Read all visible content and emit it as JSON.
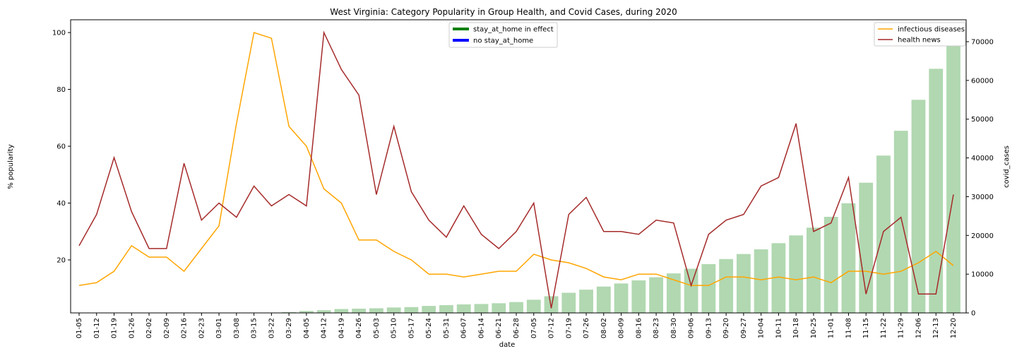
{
  "chart_data": {
    "type": "line",
    "title": "West Virginia: Category Popularity in Group Health, and Covid Cases, during 2020",
    "xlabel": "date",
    "ylabel": "% popularity",
    "y2label": "covid_cases",
    "categories": [
      "01-05",
      "01-12",
      "01-19",
      "01-26",
      "02-02",
      "02-09",
      "02-16",
      "02-23",
      "03-01",
      "03-08",
      "03-15",
      "03-22",
      "03-29",
      "04-05",
      "04-12",
      "04-19",
      "04-26",
      "05-03",
      "05-10",
      "05-17",
      "05-24",
      "05-31",
      "06-07",
      "06-14",
      "06-21",
      "06-28",
      "07-05",
      "07-12",
      "07-19",
      "07-26",
      "08-02",
      "08-09",
      "08-16",
      "08-23",
      "08-30",
      "09-06",
      "09-13",
      "09-20",
      "09-27",
      "10-04",
      "10-11",
      "10-18",
      "10-25",
      "11-01",
      "11-08",
      "11-15",
      "11-22",
      "11-29",
      "12-06",
      "12-13",
      "12-20"
    ],
    "series": [
      {
        "type": "bar",
        "axis": "y2",
        "color": "#b1d8b1",
        "values": [
          0,
          0,
          0,
          0,
          0,
          0,
          0,
          0,
          0,
          0,
          0,
          50,
          200,
          500,
          700,
          1000,
          1100,
          1200,
          1400,
          1500,
          1800,
          2000,
          2200,
          2300,
          2500,
          2800,
          3400,
          4300,
          5200,
          6000,
          6800,
          7600,
          8400,
          9200,
          10200,
          11400,
          12600,
          13900,
          15200,
          16400,
          18000,
          20000,
          22000,
          24800,
          28300,
          33600,
          40600,
          47000,
          55000,
          63000,
          72500
        ]
      },
      {
        "name": "infectious diseases",
        "type": "line",
        "color": "#ffa500",
        "values": [
          11,
          12,
          16,
          25,
          21,
          21,
          16,
          24,
          32,
          68,
          100,
          98,
          67,
          60,
          45,
          40,
          27,
          27,
          23,
          20,
          15,
          15,
          14,
          15,
          16,
          16,
          22,
          20,
          19,
          17,
          14,
          13,
          15,
          15,
          13,
          11,
          11,
          14,
          14,
          13,
          14,
          13,
          14,
          12,
          16,
          16,
          15,
          16,
          19,
          23,
          18
        ]
      },
      {
        "name": "health news",
        "type": "line",
        "color": "#a52a2a",
        "values": [
          25,
          36,
          56,
          37,
          24,
          24,
          54,
          34,
          40,
          35,
          46,
          39,
          43,
          39,
          100,
          87,
          78,
          43,
          67,
          44,
          34,
          28,
          39,
          29,
          24,
          30,
          40,
          3,
          36,
          42,
          30,
          30,
          29,
          34,
          33,
          11,
          29,
          34,
          36,
          46,
          49,
          68,
          30,
          33,
          49,
          8,
          30,
          35,
          8,
          8,
          43
        ]
      }
    ],
    "stay_at_home_legend": [
      {
        "name": "stay_at_home in effect",
        "color": "#008000"
      },
      {
        "name": "no stay_at_home",
        "color": "#0000ff"
      }
    ],
    "ylim": [
      1.35,
      104.5
    ],
    "yticks": [
      20,
      40,
      60,
      80,
      100
    ],
    "y2lim": [
      0,
      75650
    ],
    "y2ticks": [
      0,
      10000,
      20000,
      30000,
      40000,
      50000,
      60000,
      70000
    ]
  }
}
